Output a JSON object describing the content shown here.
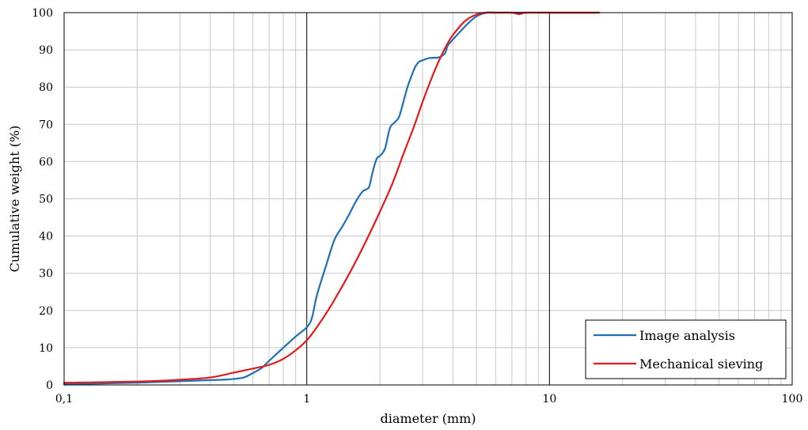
{
  "chart_data": {
    "type": "line",
    "title": "",
    "xlabel": "diameter (mm)",
    "ylabel": "Cumulative weight (%)",
    "xscale": "log",
    "xlim": [
      0.1,
      100
    ],
    "ylim": [
      0,
      100
    ],
    "grid": true,
    "legend_position": "bottom-right",
    "x_ticks": [
      {
        "value": 0.1,
        "label": "0,1"
      },
      {
        "value": 1,
        "label": "1"
      },
      {
        "value": 10,
        "label": "10"
      },
      {
        "value": 100,
        "label": "100"
      }
    ],
    "y_ticks": [
      {
        "value": 0,
        "label": "0"
      },
      {
        "value": 10,
        "label": "10"
      },
      {
        "value": 20,
        "label": "20"
      },
      {
        "value": 30,
        "label": "30"
      },
      {
        "value": 40,
        "label": "40"
      },
      {
        "value": 50,
        "label": "50"
      },
      {
        "value": 60,
        "label": "60"
      },
      {
        "value": 70,
        "label": "70"
      },
      {
        "value": 80,
        "label": "80"
      },
      {
        "value": 90,
        "label": "90"
      },
      {
        "value": 100,
        "label": "100"
      }
    ],
    "series": [
      {
        "name": "Image analysis",
        "color": "#1f6fb4",
        "x": [
          0.1,
          0.2,
          0.3,
          0.4,
          0.45,
          0.5,
          0.55,
          0.6,
          0.65,
          0.7,
          0.8,
          0.9,
          1.0,
          1.05,
          1.1,
          1.2,
          1.3,
          1.4,
          1.5,
          1.6,
          1.7,
          1.8,
          1.85,
          1.9,
          1.95,
          2.0,
          2.1,
          2.2,
          2.3,
          2.4,
          2.5,
          2.6,
          2.7,
          2.8,
          2.9,
          3.0,
          3.2,
          3.5,
          3.7,
          3.8,
          3.9,
          4.0,
          4.3,
          4.6,
          5.0,
          5.5,
          6.0,
          8.0,
          10.0,
          16.0
        ],
        "y": [
          0.2,
          0.6,
          1.0,
          1.3,
          1.4,
          1.6,
          2.0,
          3.2,
          4.5,
          6.5,
          10.0,
          13.0,
          15.5,
          18.0,
          24.0,
          32.0,
          39.0,
          42.5,
          46.0,
          49.5,
          52.0,
          53.0,
          56.0,
          59.0,
          61.0,
          61.5,
          63.5,
          69.0,
          70.5,
          72.0,
          76.0,
          80.0,
          83.0,
          85.5,
          86.8,
          87.2,
          87.8,
          88.0,
          89.0,
          91.0,
          92.0,
          92.8,
          95.0,
          97.0,
          99.0,
          100.0,
          100.0,
          100.0,
          100.0,
          100.0
        ]
      },
      {
        "name": "Mechanical sieving",
        "color": "#e31a1c",
        "x": [
          0.1,
          0.2,
          0.3,
          0.4,
          0.5,
          0.6,
          0.7,
          0.8,
          0.9,
          1.0,
          1.1,
          1.25,
          1.5,
          1.75,
          2.0,
          2.25,
          2.5,
          2.75,
          3.0,
          3.25,
          3.5,
          3.75,
          4.0,
          4.5,
          5.0,
          5.5,
          6.0,
          7.0,
          7.5,
          8.0,
          10.0,
          12.0,
          16.0
        ],
        "y": [
          0.6,
          0.9,
          1.4,
          2.0,
          3.3,
          4.4,
          5.4,
          7.0,
          9.3,
          12.0,
          15.5,
          21.0,
          30.0,
          38.5,
          46.5,
          54.0,
          62.0,
          69.0,
          76.0,
          82.0,
          87.0,
          91.0,
          94.0,
          97.8,
          99.5,
          100.0,
          100.0,
          100.0,
          99.6,
          100.0,
          100.0,
          100.0,
          100.0
        ]
      }
    ]
  }
}
